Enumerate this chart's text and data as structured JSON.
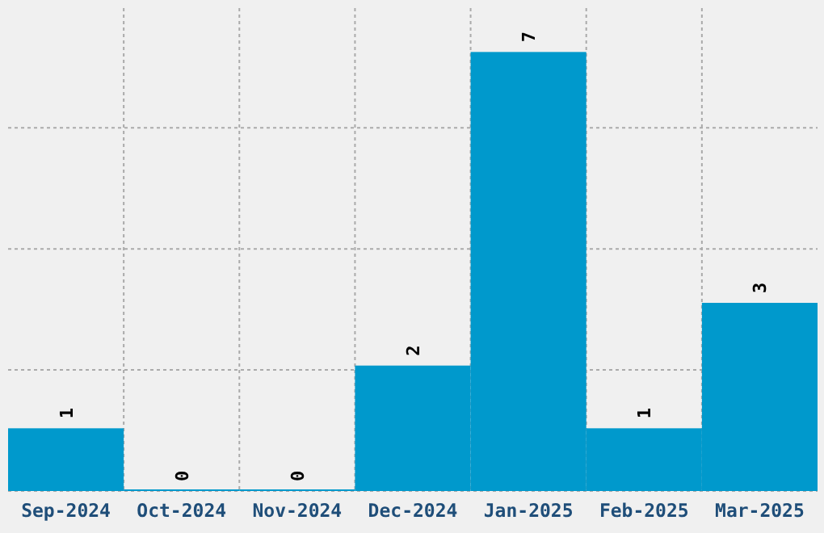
{
  "chart_data": {
    "type": "bar",
    "categories": [
      "Sep-2024",
      "Oct-2024",
      "Nov-2024",
      "Dec-2024",
      "Jan-2025",
      "Feb-2025",
      "Mar-2025"
    ],
    "values": [
      1,
      0,
      0,
      2,
      7,
      1,
      3
    ],
    "color": "#0099cc",
    "ylim": [
      0,
      7.7
    ],
    "yticks": [
      {
        "value": 0,
        "label": null
      },
      {
        "value": 1.93,
        "label": null
      },
      {
        "value": 3.86,
        "label": null
      },
      {
        "value": 5.79,
        "label": null
      }
    ],
    "tick_labels": "x",
    "grid": true,
    "data_labels": true
  }
}
